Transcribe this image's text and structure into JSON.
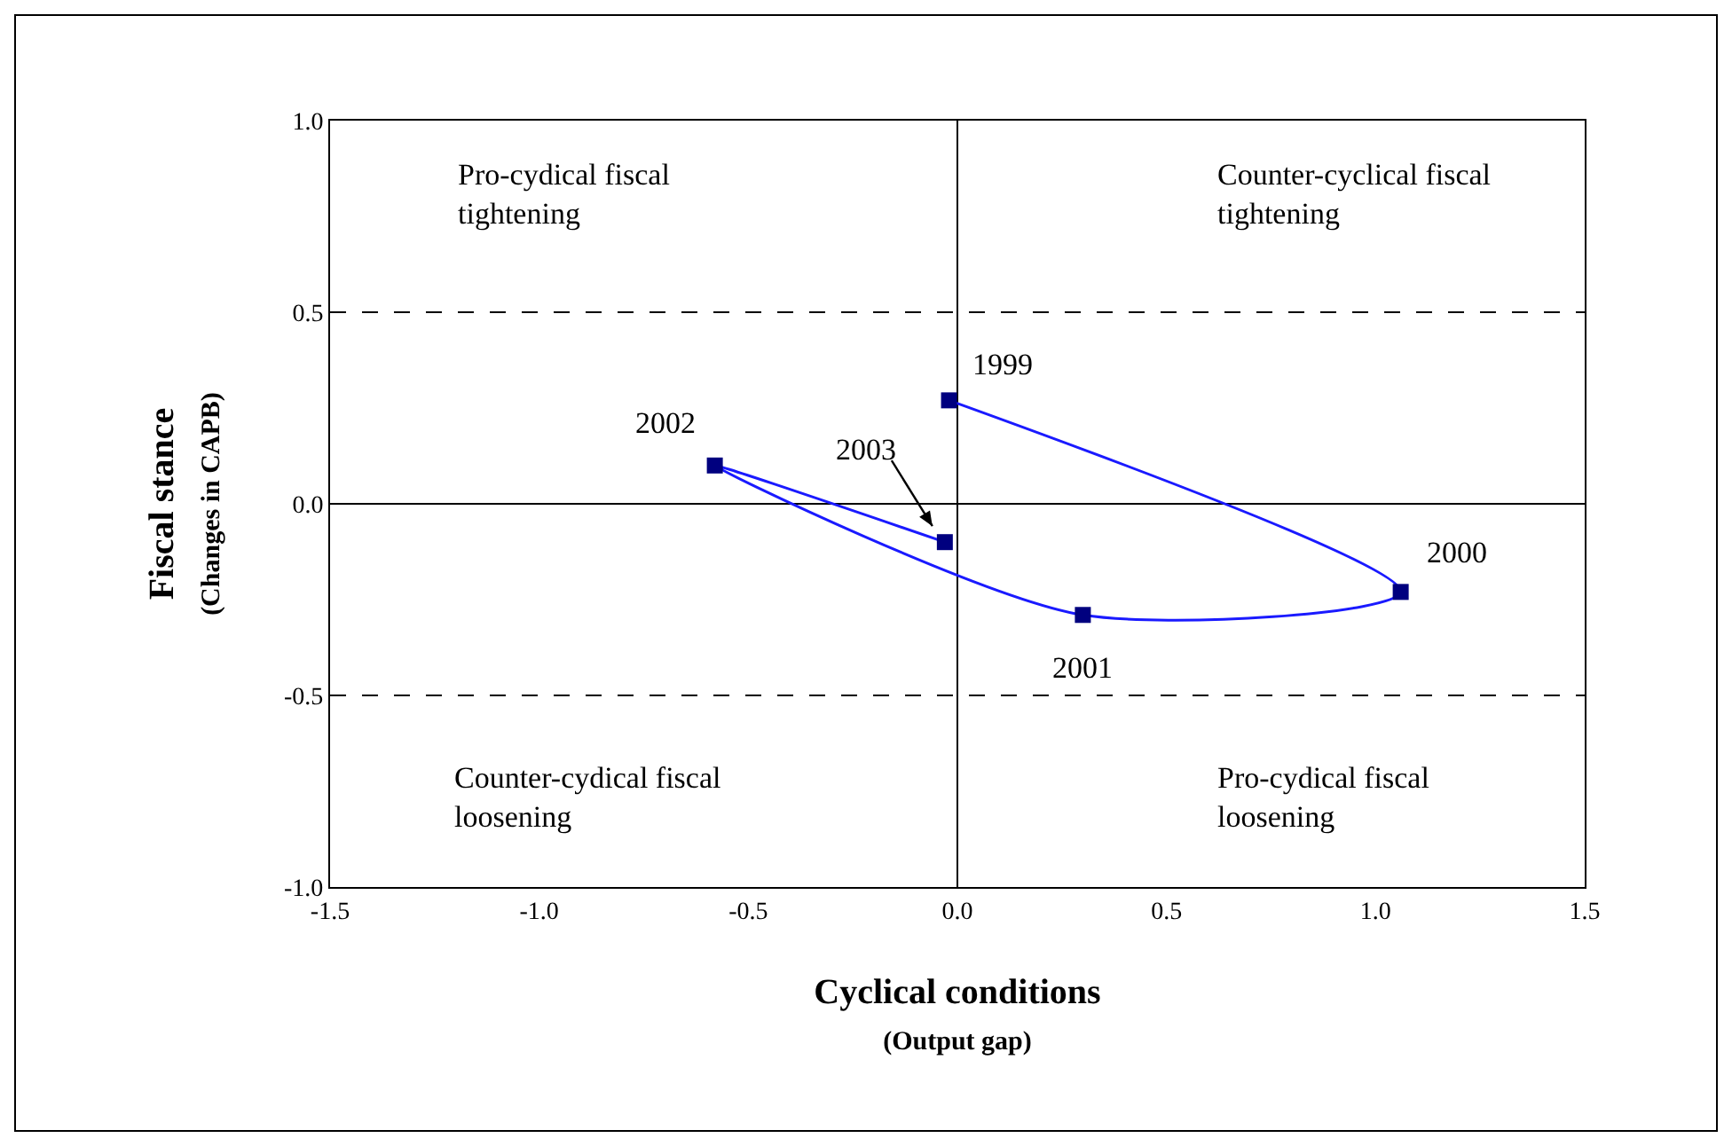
{
  "chart_data": {
    "type": "line",
    "xlabel": "Cyclical conditions\n(Output gap)",
    "ylabel": "Fiscal stance\n(Changes in CAPB)",
    "x": [
      -0.02,
      1.06,
      0.3,
      -0.58,
      -0.03
    ],
    "series": [
      {
        "color": "#1a1aff",
        "colors": [
          "#00007f",
          "#00007f",
          "#00007f",
          "#00007f",
          "#00007f"
        ],
        "values": [
          0.27,
          -0.23,
          -0.29,
          0.1,
          -0.1
        ]
      }
    ],
    "marker": "square",
    "grid": false,
    "xlim": [
      -1.5,
      1.5
    ],
    "ylim": [
      -1.0,
      1.0
    ],
    "xticks": [
      {
        "value": -1.5,
        "label": "-1.5"
      },
      {
        "value": -1,
        "label": "-1.0"
      },
      {
        "value": -0.5,
        "label": "-0.5"
      },
      {
        "value": 0,
        "label": "0.0"
      },
      {
        "value": 0.5,
        "label": "0.5"
      },
      {
        "value": 1,
        "label": "1.0"
      },
      {
        "value": 1.5,
        "label": "1.5"
      }
    ],
    "yticks": [
      {
        "value": -1,
        "label": "-1.0"
      },
      {
        "value": -0.5,
        "label": "-0.5"
      },
      {
        "value": 0,
        "label": "0.0"
      },
      {
        "value": 0.5,
        "label": "0.5"
      },
      {
        "value": 1,
        "label": "1.0"
      }
    ],
    "ref_lines": [
      {
        "axis": "y",
        "value": 0.5,
        "line_style": "dashed"
      },
      {
        "axis": "y",
        "value": -0.5,
        "line_style": "dashed"
      },
      {
        "axis": "y",
        "value": 0,
        "line_style": "solid"
      },
      {
        "axis": "x",
        "value": 0,
        "line_style": "solid"
      }
    ],
    "annotations": [
      {
        "text": "1999",
        "x": -0.02,
        "y": 0.27
      },
      {
        "text": "2000",
        "x": 1.06,
        "y": -0.23
      },
      {
        "text": "2001",
        "x": 0.3,
        "y": -0.29
      },
      {
        "text": "2002",
        "x": -0.58,
        "y": 0.1
      },
      {
        "text": "2003",
        "x": -0.03,
        "y": -0.1
      },
      "Pro-cydical fiscal\ntightening",
      "Counter-cyclical fiscal\ntightening",
      "Counter-cydical fiscal\nloosening",
      "Pro-cydical fiscal\nloosening"
    ]
  }
}
